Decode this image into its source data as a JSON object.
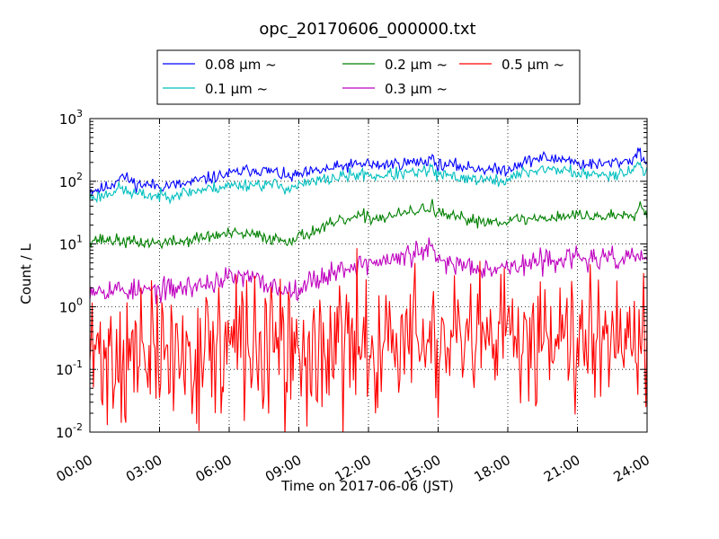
{
  "chart_data": {
    "type": "line",
    "title": "opc_20170606_000000.txt",
    "xlabel": "Time on 2017-06-06 (JST)",
    "ylabel": "Count / L",
    "yscale": "log",
    "ylim": [
      0.01,
      1000
    ],
    "xlim_hours": [
      0,
      24
    ],
    "grid": true,
    "legend_position": "top-center",
    "x_ticks": [
      "00:00",
      "03:00",
      "06:00",
      "09:00",
      "12:00",
      "15:00",
      "18:00",
      "21:00",
      "24:00"
    ],
    "y_ticks": [
      {
        "value": 0.01,
        "base": "10",
        "exp": "-2"
      },
      {
        "value": 0.1,
        "base": "10",
        "exp": "-1"
      },
      {
        "value": 1,
        "base": "10",
        "exp": "0"
      },
      {
        "value": 10,
        "base": "10",
        "exp": "1"
      },
      {
        "value": 100,
        "base": "10",
        "exp": "2"
      },
      {
        "value": 1000,
        "base": "10",
        "exp": "3"
      }
    ],
    "series": [
      {
        "name": "0.08 μm ~",
        "color": "#0000ff",
        "noise": 0.05,
        "seed": 11,
        "points": [
          [
            0.0,
            72
          ],
          [
            0.5,
            75
          ],
          [
            1.0,
            90
          ],
          [
            1.3,
            125
          ],
          [
            1.6,
            110
          ],
          [
            2.0,
            90
          ],
          [
            3.0,
            85
          ],
          [
            4.0,
            88
          ],
          [
            5.0,
            110
          ],
          [
            6.0,
            130
          ],
          [
            7.0,
            155
          ],
          [
            8.0,
            140
          ],
          [
            8.5,
            115
          ],
          [
            9.0,
            125
          ],
          [
            10.0,
            150
          ],
          [
            11.0,
            175
          ],
          [
            11.9,
            190
          ],
          [
            12.0,
            210
          ],
          [
            12.1,
            175
          ],
          [
            13.0,
            190
          ],
          [
            14.0,
            200
          ],
          [
            14.6,
            215
          ],
          [
            14.75,
            290
          ],
          [
            14.85,
            180
          ],
          [
            15.5,
            180
          ],
          [
            16.5,
            165
          ],
          [
            17.5,
            150
          ],
          [
            18.0,
            155
          ],
          [
            18.5,
            195
          ],
          [
            19.5,
            240
          ],
          [
            20.0,
            220
          ],
          [
            20.5,
            235
          ],
          [
            21.0,
            190
          ],
          [
            22.0,
            185
          ],
          [
            23.0,
            210
          ],
          [
            23.4,
            220
          ],
          [
            23.6,
            320
          ],
          [
            23.8,
            235
          ],
          [
            24.0,
            210
          ]
        ]
      },
      {
        "name": "0.1 μm ~",
        "color": "#00bfbf",
        "noise": 0.05,
        "seed": 23,
        "points": [
          [
            0.0,
            55
          ],
          [
            0.5,
            58
          ],
          [
            1.0,
            70
          ],
          [
            1.3,
            78
          ],
          [
            1.6,
            68
          ],
          [
            2.0,
            62
          ],
          [
            3.0,
            58
          ],
          [
            4.0,
            65
          ],
          [
            5.0,
            75
          ],
          [
            6.0,
            85
          ],
          [
            7.0,
            90
          ],
          [
            8.0,
            88
          ],
          [
            8.5,
            78
          ],
          [
            9.0,
            85
          ],
          [
            10.0,
            105
          ],
          [
            11.0,
            120
          ],
          [
            11.9,
            130
          ],
          [
            12.0,
            145
          ],
          [
            12.1,
            118
          ],
          [
            13.0,
            130
          ],
          [
            14.0,
            135
          ],
          [
            14.6,
            145
          ],
          [
            14.75,
            190
          ],
          [
            14.85,
            125
          ],
          [
            15.5,
            120
          ],
          [
            16.5,
            110
          ],
          [
            17.5,
            100
          ],
          [
            18.0,
            105
          ],
          [
            18.5,
            130
          ],
          [
            19.5,
            160
          ],
          [
            20.0,
            150
          ],
          [
            20.5,
            155
          ],
          [
            21.0,
            130
          ],
          [
            22.0,
            125
          ],
          [
            23.0,
            140
          ],
          [
            23.4,
            150
          ],
          [
            23.6,
            210
          ],
          [
            23.8,
            160
          ],
          [
            24.0,
            130
          ]
        ]
      },
      {
        "name": "0.2 μm ~",
        "color": "#008000",
        "noise": 0.05,
        "seed": 37,
        "points": [
          [
            0.0,
            12
          ],
          [
            1.0,
            11.5
          ],
          [
            2.0,
            10.5
          ],
          [
            3.0,
            10.5
          ],
          [
            4.0,
            11
          ],
          [
            5.0,
            13
          ],
          [
            6.0,
            14.5
          ],
          [
            7.0,
            14
          ],
          [
            8.0,
            12
          ],
          [
            8.5,
            11.5
          ],
          [
            9.0,
            13
          ],
          [
            10.0,
            18
          ],
          [
            11.0,
            24
          ],
          [
            11.9,
            28
          ],
          [
            12.0,
            32
          ],
          [
            12.1,
            25
          ],
          [
            13.0,
            28
          ],
          [
            14.0,
            33
          ],
          [
            14.6,
            38
          ],
          [
            14.75,
            45
          ],
          [
            14.85,
            31
          ],
          [
            15.5,
            27
          ],
          [
            16.5,
            24
          ],
          [
            17.5,
            23
          ],
          [
            18.0,
            24
          ],
          [
            19.0,
            25
          ],
          [
            20.0,
            27
          ],
          [
            21.0,
            29
          ],
          [
            22.0,
            27
          ],
          [
            23.0,
            30
          ],
          [
            23.5,
            32
          ],
          [
            23.7,
            42
          ],
          [
            24.0,
            30
          ]
        ]
      },
      {
        "name": "0.3 μm ~",
        "color": "#bf00bf",
        "noise": 0.09,
        "seed": 53,
        "points": [
          [
            0.0,
            2.0
          ],
          [
            1.0,
            1.9
          ],
          [
            2.0,
            1.8
          ],
          [
            3.0,
            1.8
          ],
          [
            4.0,
            2.0
          ],
          [
            5.0,
            2.3
          ],
          [
            6.0,
            2.9
          ],
          [
            7.0,
            2.8
          ],
          [
            8.0,
            2.0
          ],
          [
            8.5,
            1.8
          ],
          [
            9.0,
            2.1
          ],
          [
            10.0,
            3.0
          ],
          [
            11.0,
            4.2
          ],
          [
            12.0,
            5.0
          ],
          [
            13.0,
            5.5
          ],
          [
            14.0,
            7.0
          ],
          [
            14.6,
            8.2
          ],
          [
            14.75,
            9.0
          ],
          [
            14.85,
            5.5
          ],
          [
            15.5,
            5.0
          ],
          [
            16.5,
            4.5
          ],
          [
            17.5,
            4.2
          ],
          [
            18.0,
            4.3
          ],
          [
            19.0,
            4.8
          ],
          [
            20.0,
            5.8
          ],
          [
            21.0,
            6.0
          ],
          [
            22.0,
            5.5
          ],
          [
            23.0,
            5.8
          ],
          [
            23.5,
            6.5
          ],
          [
            24.0,
            6.0
          ]
        ]
      },
      {
        "name": "0.5 μm ~",
        "color": "#ff0000",
        "noise": 0.55,
        "seed": 71,
        "points": [
          [
            0.0,
            0.17
          ],
          [
            2.0,
            0.16
          ],
          [
            4.0,
            0.17
          ],
          [
            5.0,
            0.19
          ],
          [
            6.0,
            0.22
          ],
          [
            7.0,
            0.24
          ],
          [
            8.0,
            0.18
          ],
          [
            9.0,
            0.16
          ],
          [
            10.0,
            0.19
          ],
          [
            11.0,
            0.22
          ],
          [
            12.0,
            0.25
          ],
          [
            13.0,
            0.28
          ],
          [
            14.0,
            0.3
          ],
          [
            14.8,
            0.32
          ],
          [
            15.0,
            0.18
          ],
          [
            16.0,
            0.2
          ],
          [
            17.0,
            0.24
          ],
          [
            18.0,
            0.3
          ],
          [
            19.0,
            0.38
          ],
          [
            20.0,
            0.45
          ],
          [
            21.0,
            0.48
          ],
          [
            22.0,
            0.45
          ],
          [
            23.0,
            0.48
          ],
          [
            24.0,
            0.45
          ]
        ]
      }
    ]
  }
}
